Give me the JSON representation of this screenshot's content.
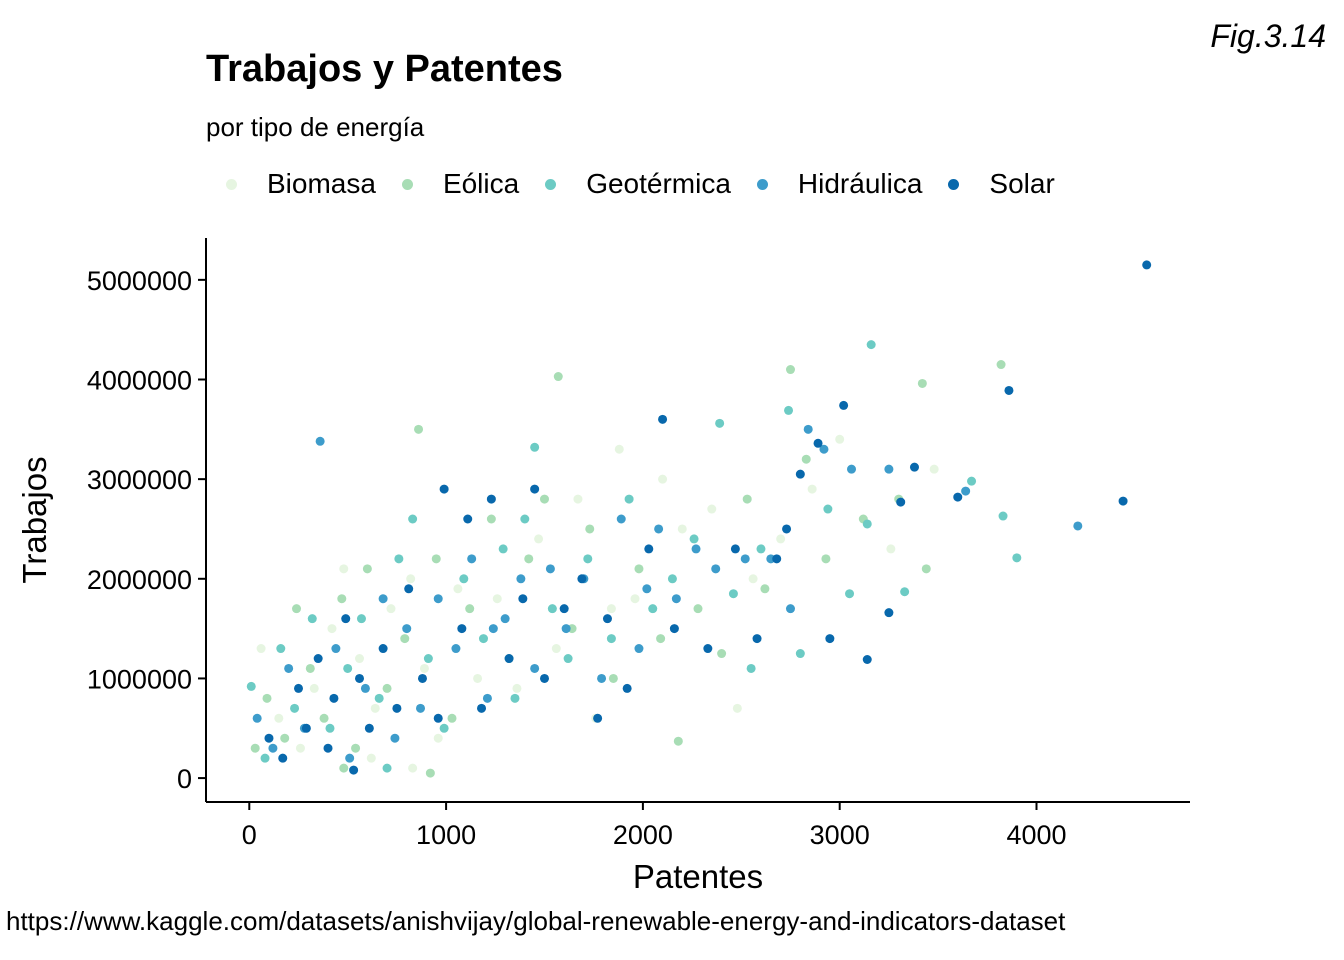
{
  "figure_label": "Fig.3.14",
  "source_url": "https://www.kaggle.com/datasets/anishvijay/global-renewable-energy-and-indicators-dataset",
  "colors": {
    "Biomasa": "#e6f5e1",
    "Eólica": "#a8ddb5",
    "Geotérmica": "#6ccbc4",
    "Hidráulica": "#3d9ccb",
    "Solar": "#0868ac"
  },
  "chart_data": {
    "type": "scatter",
    "title": "Trabajos y Patentes",
    "subtitle": "por tipo de energía",
    "xlabel": "Patentes",
    "ylabel": "Trabajos",
    "xlim": [
      -220,
      4780
    ],
    "ylim": [
      -240000,
      5420000
    ],
    "xticks": [
      0,
      1000,
      2000,
      3000,
      4000
    ],
    "yticks": [
      0,
      1000000,
      2000000,
      3000000,
      4000000,
      5000000
    ],
    "legend": [
      "Biomasa",
      "Eólica",
      "Geotérmica",
      "Hidráulica",
      "Solar"
    ],
    "legend_position": "top",
    "grid": false,
    "series": [
      {
        "name": "Biomasa",
        "points": [
          [
            60,
            1300000
          ],
          [
            150,
            600000
          ],
          [
            260,
            300000
          ],
          [
            330,
            900000
          ],
          [
            420,
            1500000
          ],
          [
            480,
            2100000
          ],
          [
            560,
            1200000
          ],
          [
            640,
            700000
          ],
          [
            720,
            1700000
          ],
          [
            820,
            2000000
          ],
          [
            890,
            1100000
          ],
          [
            960,
            400000
          ],
          [
            1060,
            1900000
          ],
          [
            1160,
            1000000
          ],
          [
            1260,
            1800000
          ],
          [
            1360,
            900000
          ],
          [
            1470,
            2400000
          ],
          [
            1560,
            1300000
          ],
          [
            1670,
            2800000
          ],
          [
            1760,
            600000
          ],
          [
            1880,
            3300000
          ],
          [
            1960,
            1800000
          ],
          [
            2100,
            3000000
          ],
          [
            2200,
            2500000
          ],
          [
            2350,
            2700000
          ],
          [
            2480,
            700000
          ],
          [
            2560,
            2000000
          ],
          [
            2700,
            2400000
          ],
          [
            2860,
            2900000
          ],
          [
            3000,
            3400000
          ],
          [
            3260,
            2300000
          ],
          [
            3480,
            3100000
          ],
          [
            620,
            200000
          ],
          [
            830,
            100000
          ],
          [
            1840,
            1700000
          ]
        ]
      },
      {
        "name": "Eólica",
        "points": [
          [
            30,
            300000
          ],
          [
            90,
            800000
          ],
          [
            180,
            400000
          ],
          [
            240,
            1700000
          ],
          [
            310,
            1100000
          ],
          [
            380,
            600000
          ],
          [
            470,
            1800000
          ],
          [
            540,
            300000
          ],
          [
            600,
            2100000
          ],
          [
            700,
            900000
          ],
          [
            790,
            1400000
          ],
          [
            860,
            3500000
          ],
          [
            950,
            2200000
          ],
          [
            1030,
            600000
          ],
          [
            1120,
            1700000
          ],
          [
            1230,
            2600000
          ],
          [
            1320,
            1200000
          ],
          [
            1420,
            2200000
          ],
          [
            1570,
            4030000
          ],
          [
            1640,
            1500000
          ],
          [
            1730,
            2500000
          ],
          [
            1850,
            1000000
          ],
          [
            1980,
            2100000
          ],
          [
            2090,
            1400000
          ],
          [
            2180,
            370000
          ],
          [
            2280,
            1700000
          ],
          [
            2400,
            1250000
          ],
          [
            2530,
            2800000
          ],
          [
            2620,
            1900000
          ],
          [
            2750,
            4100000
          ],
          [
            2830,
            3200000
          ],
          [
            2930,
            2200000
          ],
          [
            3120,
            2600000
          ],
          [
            3300,
            2800000
          ],
          [
            3420,
            3960000
          ],
          [
            3820,
            4150000
          ],
          [
            3440,
            2100000
          ],
          [
            480,
            100000
          ],
          [
            920,
            50000
          ],
          [
            1500,
            2800000
          ]
        ]
      },
      {
        "name": "Geotérmica",
        "points": [
          [
            10,
            920000
          ],
          [
            80,
            200000
          ],
          [
            160,
            1300000
          ],
          [
            230,
            700000
          ],
          [
            320,
            1600000
          ],
          [
            410,
            500000
          ],
          [
            500,
            1100000
          ],
          [
            570,
            1600000
          ],
          [
            660,
            800000
          ],
          [
            760,
            2200000
          ],
          [
            830,
            2600000
          ],
          [
            910,
            1200000
          ],
          [
            990,
            500000
          ],
          [
            1090,
            2000000
          ],
          [
            1190,
            1400000
          ],
          [
            1290,
            2300000
          ],
          [
            1400,
            2600000
          ],
          [
            1450,
            3320000
          ],
          [
            1540,
            1700000
          ],
          [
            1620,
            1200000
          ],
          [
            1720,
            2200000
          ],
          [
            1840,
            1400000
          ],
          [
            1930,
            2800000
          ],
          [
            2050,
            1700000
          ],
          [
            2150,
            2000000
          ],
          [
            2260,
            2400000
          ],
          [
            2390,
            3560000
          ],
          [
            2460,
            1850000
          ],
          [
            2600,
            2300000
          ],
          [
            2740,
            3690000
          ],
          [
            2800,
            1250000
          ],
          [
            2940,
            2700000
          ],
          [
            3050,
            1850000
          ],
          [
            3140,
            2550000
          ],
          [
            3160,
            4350000
          ],
          [
            3330,
            1870000
          ],
          [
            3670,
            2980000
          ],
          [
            3830,
            2630000
          ],
          [
            3900,
            2210000
          ],
          [
            700,
            100000
          ],
          [
            1350,
            800000
          ],
          [
            2550,
            1100000
          ]
        ]
      },
      {
        "name": "Hidráulica",
        "points": [
          [
            40,
            600000
          ],
          [
            120,
            300000
          ],
          [
            200,
            1100000
          ],
          [
            280,
            500000
          ],
          [
            360,
            3380000
          ],
          [
            440,
            1300000
          ],
          [
            510,
            200000
          ],
          [
            590,
            900000
          ],
          [
            680,
            1800000
          ],
          [
            740,
            400000
          ],
          [
            800,
            1500000
          ],
          [
            870,
            700000
          ],
          [
            960,
            1800000
          ],
          [
            1050,
            1300000
          ],
          [
            1130,
            2200000
          ],
          [
            1210,
            800000
          ],
          [
            1300,
            1600000
          ],
          [
            1380,
            2000000
          ],
          [
            1450,
            1100000
          ],
          [
            1530,
            2100000
          ],
          [
            1610,
            1500000
          ],
          [
            1700,
            2000000
          ],
          [
            1790,
            1000000
          ],
          [
            1890,
            2600000
          ],
          [
            1980,
            1300000
          ],
          [
            2080,
            2500000
          ],
          [
            2170,
            1800000
          ],
          [
            2270,
            2300000
          ],
          [
            2370,
            2100000
          ],
          [
            2520,
            2200000
          ],
          [
            2650,
            2200000
          ],
          [
            2750,
            1700000
          ],
          [
            2840,
            3500000
          ],
          [
            2920,
            3300000
          ],
          [
            3060,
            3100000
          ],
          [
            3250,
            3100000
          ],
          [
            3640,
            2880000
          ],
          [
            4210,
            2530000
          ],
          [
            1240,
            1500000
          ],
          [
            2020,
            1900000
          ]
        ]
      },
      {
        "name": "Solar",
        "points": [
          [
            100,
            400000
          ],
          [
            170,
            200000
          ],
          [
            250,
            900000
          ],
          [
            290,
            500000
          ],
          [
            350,
            1200000
          ],
          [
            430,
            800000
          ],
          [
            490,
            1600000
          ],
          [
            560,
            1000000
          ],
          [
            610,
            500000
          ],
          [
            680,
            1300000
          ],
          [
            750,
            700000
          ],
          [
            810,
            1900000
          ],
          [
            880,
            1000000
          ],
          [
            990,
            2900000
          ],
          [
            960,
            600000
          ],
          [
            1080,
            1500000
          ],
          [
            1110,
            2600000
          ],
          [
            1180,
            700000
          ],
          [
            1230,
            2800000
          ],
          [
            1320,
            1200000
          ],
          [
            1390,
            1800000
          ],
          [
            1450,
            2900000
          ],
          [
            1500,
            1000000
          ],
          [
            1600,
            1700000
          ],
          [
            1690,
            2000000
          ],
          [
            1770,
            600000
          ],
          [
            1820,
            1600000
          ],
          [
            1920,
            900000
          ],
          [
            2030,
            2300000
          ],
          [
            2100,
            3600000
          ],
          [
            2160,
            1500000
          ],
          [
            2330,
            1300000
          ],
          [
            2470,
            2300000
          ],
          [
            2580,
            1400000
          ],
          [
            2680,
            2200000
          ],
          [
            2730,
            2500000
          ],
          [
            2800,
            3050000
          ],
          [
            2890,
            3360000
          ],
          [
            2950,
            1400000
          ],
          [
            3020,
            3740000
          ],
          [
            3140,
            1190000
          ],
          [
            3250,
            1660000
          ],
          [
            3310,
            2770000
          ],
          [
            3380,
            3120000
          ],
          [
            3600,
            2820000
          ],
          [
            3860,
            3890000
          ],
          [
            4440,
            2780000
          ],
          [
            4560,
            5150000
          ],
          [
            400,
            300000
          ],
          [
            530,
            80000
          ]
        ]
      }
    ]
  }
}
